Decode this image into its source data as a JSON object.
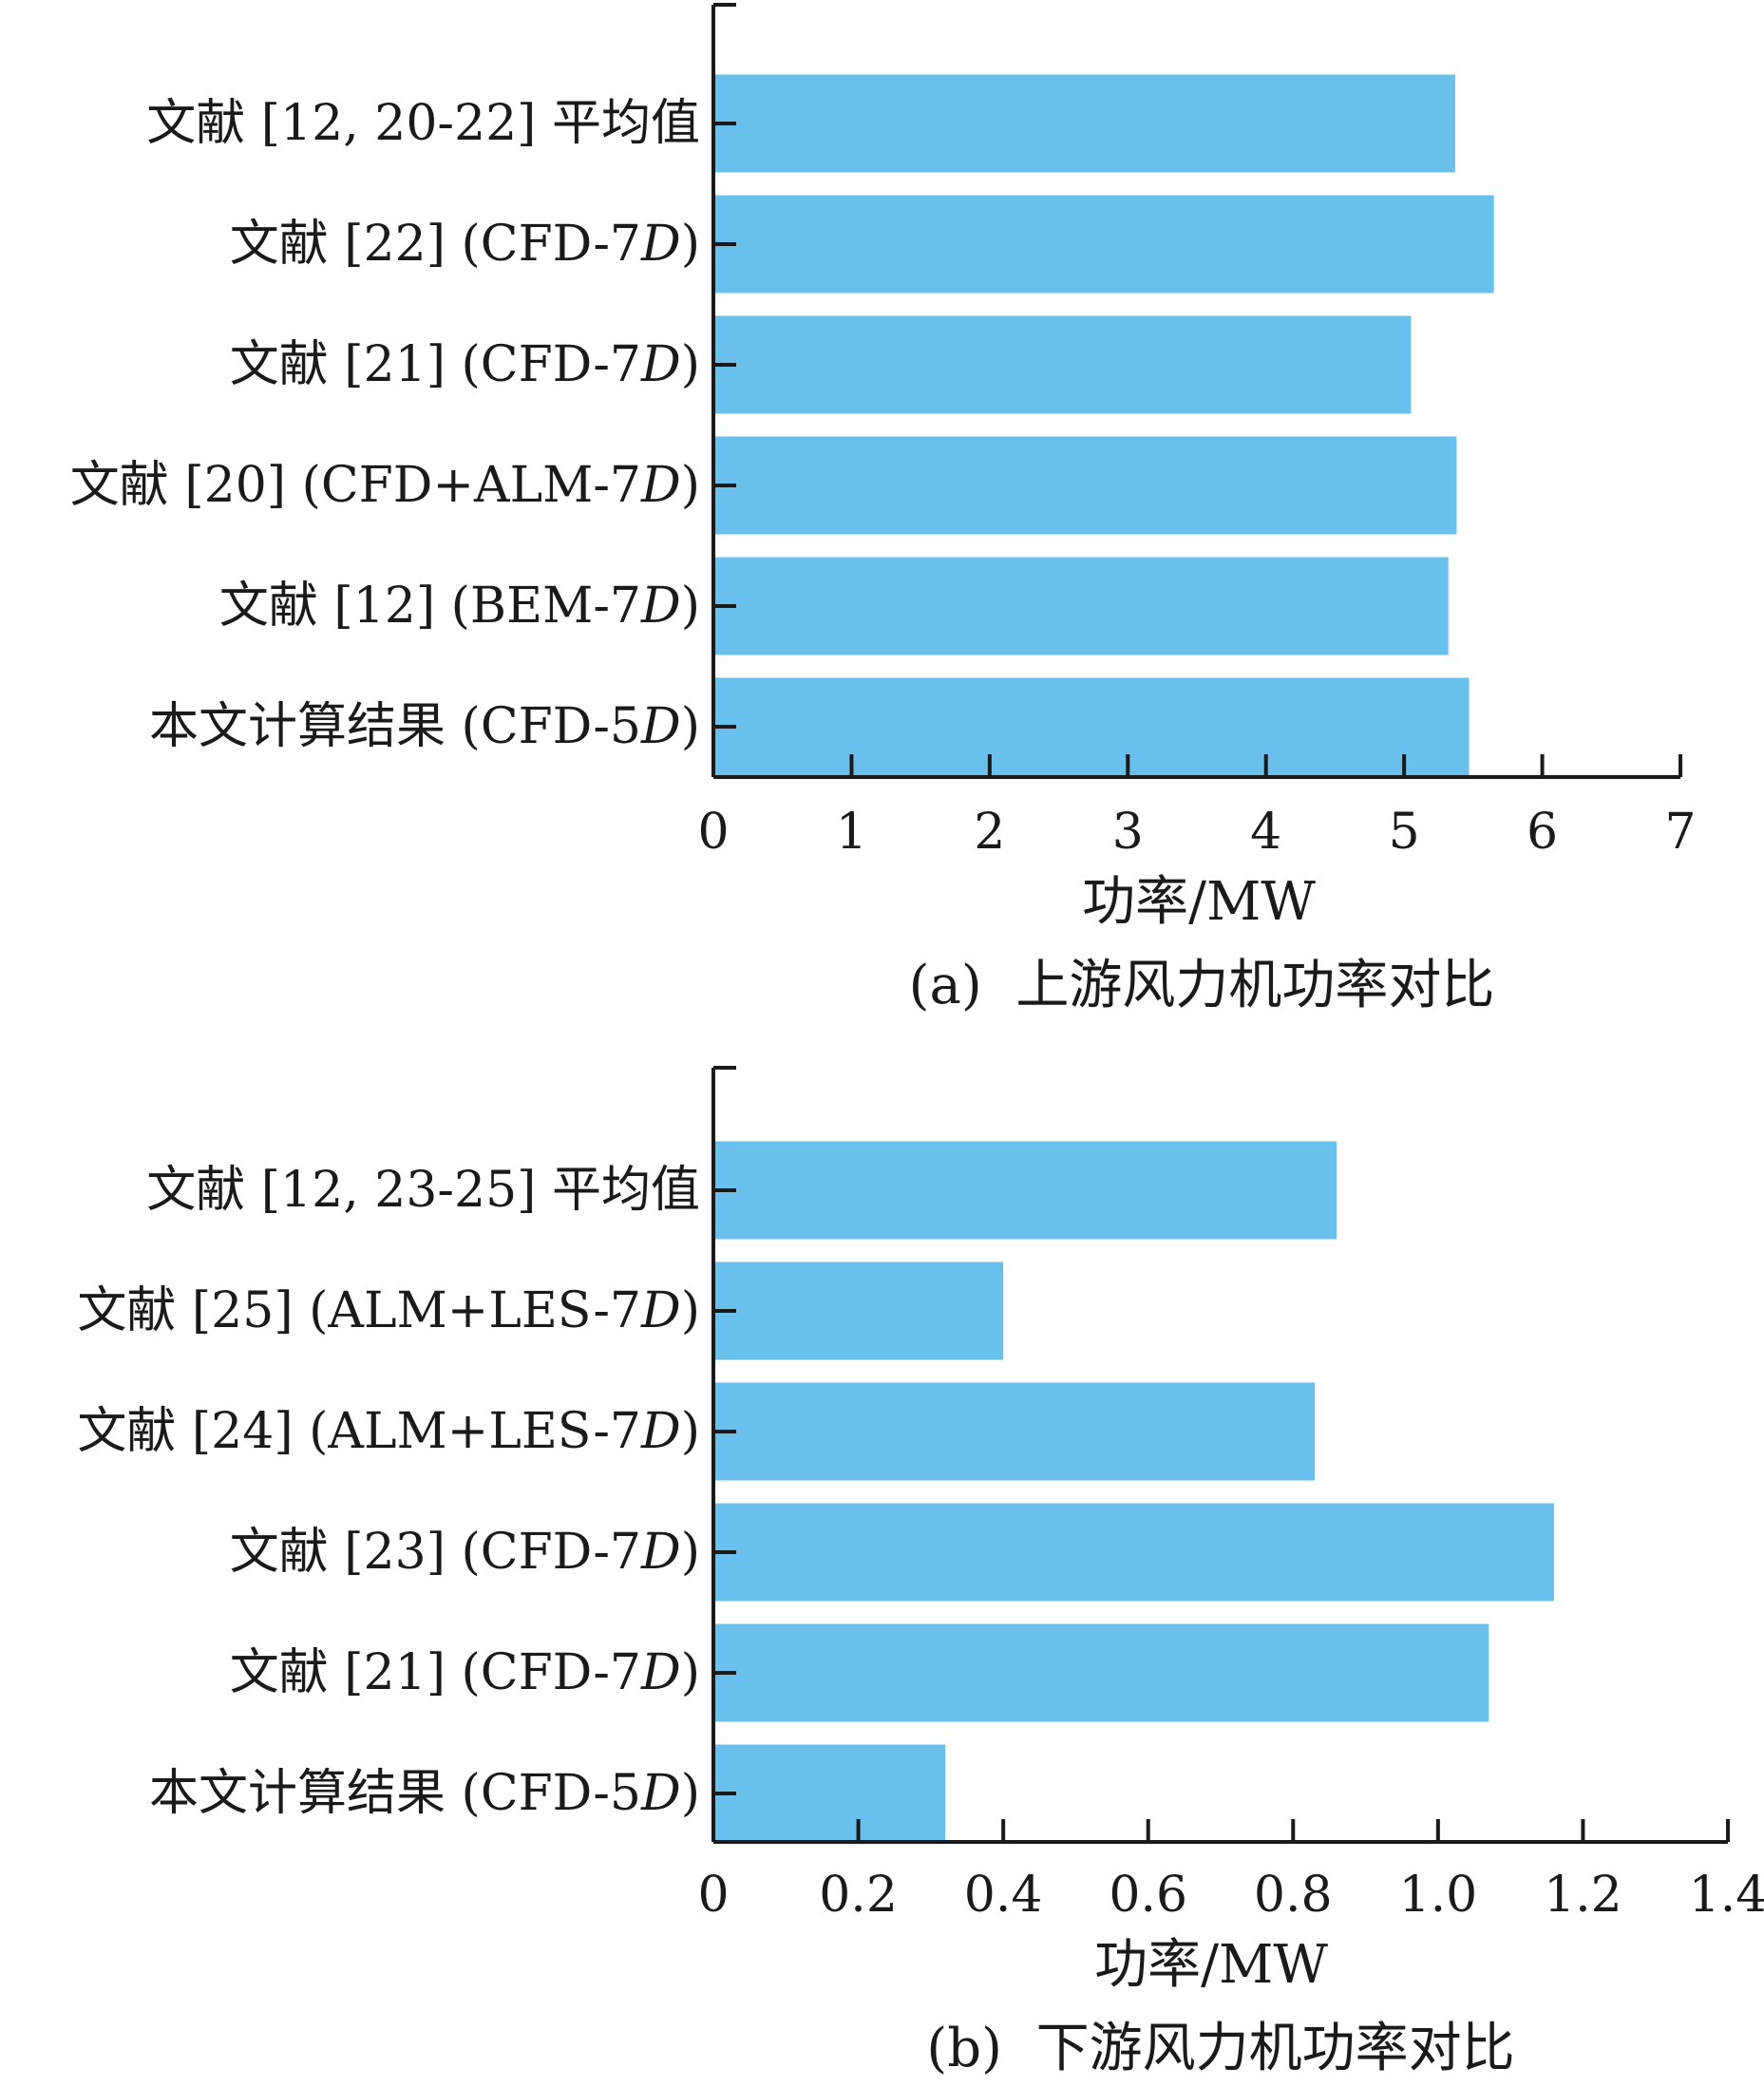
{
  "chart_data": [
    {
      "type": "bar",
      "orientation": "horizontal",
      "categories": [
        "文献 [12, 20-22] 平均值",
        "文献 [22] (CFD-7D)",
        "文献 [21] (CFD-7D)",
        "文献 [20] (CFD+ALM-7D)",
        "文献 [12] (BEM-7D)",
        "本文计算结果 (CFD-5D)"
      ],
      "values": [
        5.37,
        5.65,
        5.05,
        5.38,
        5.32,
        5.47
      ],
      "xlim": [
        0,
        7
      ],
      "xticks": [
        "0",
        "1",
        "2",
        "3",
        "4",
        "5",
        "6",
        "7"
      ],
      "xlabel": "功率/MW",
      "ylabel": "",
      "caption": "(a)  上游风力机功率对比",
      "bar_color": "#6ac0ec",
      "grid": false
    },
    {
      "type": "bar",
      "orientation": "horizontal",
      "categories": [
        "文献 [12, 23-25] 平均值",
        "文献 [25] (ALM+LES-7D)",
        "文献 [24] (ALM+LES-7D)",
        "文献 [23] (CFD-7D)",
        "文献 [21] (CFD-7D)",
        "本文计算结果 (CFD-5D)"
      ],
      "values": [
        0.86,
        0.4,
        0.83,
        1.16,
        1.07,
        0.32
      ],
      "xlim": [
        0,
        1.4
      ],
      "xticks": [
        "0",
        "0.2",
        "0.4",
        "0.6",
        "0.8",
        "1.0",
        "1.2",
        "1.4"
      ],
      "xlabel": "功率/MW",
      "ylabel": "",
      "caption": "(b)  下游风力机功率对比",
      "bar_color": "#6ac0ec",
      "grid": false
    }
  ]
}
